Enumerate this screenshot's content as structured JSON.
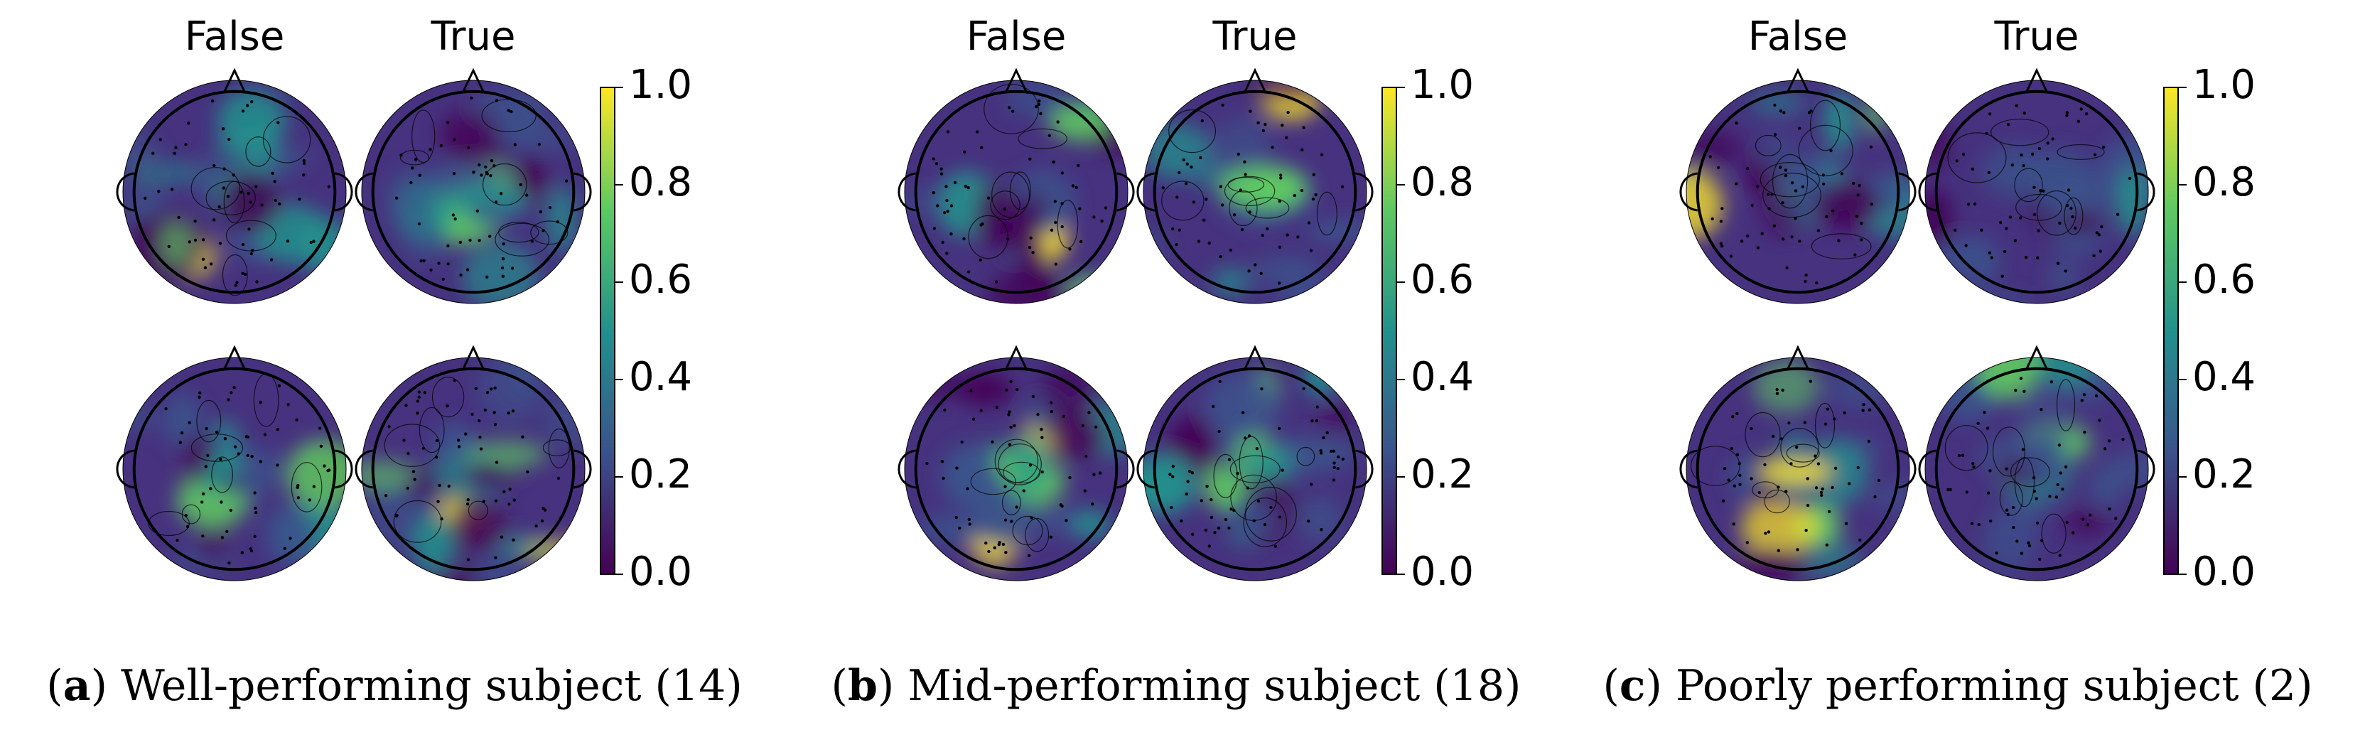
{
  "column_titles": [
    "False",
    "True"
  ],
  "colorbar": {
    "colormap": "viridis",
    "colors": [
      "#440154",
      "#3b528b",
      "#21918c",
      "#5ec962",
      "#fde725"
    ],
    "ticks": [
      "0.0",
      "0.2",
      "0.4",
      "0.6",
      "0.8",
      "1.0"
    ]
  },
  "panels": [
    {
      "letter": "a",
      "caption": "Well-performing subject (14)"
    },
    {
      "letter": "b",
      "caption": "Mid-performing subject (18)"
    },
    {
      "letter": "c",
      "caption": "Poorly performing subject (2)"
    }
  ]
}
